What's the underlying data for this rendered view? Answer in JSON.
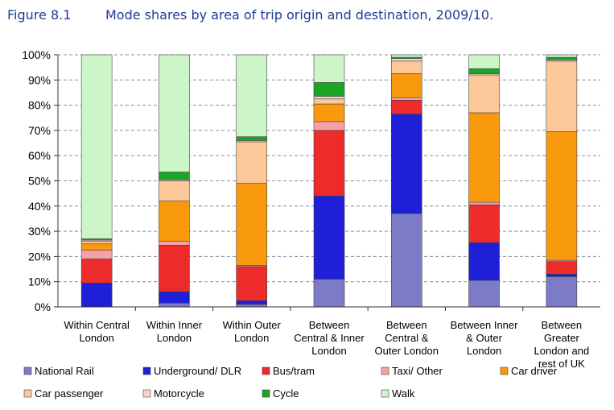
{
  "figure_label": "Figure 8.1",
  "chart_data": {
    "type": "bar",
    "stacked": true,
    "title": "Mode shares by area of trip origin and destination, 2009/10.",
    "xlabel": "",
    "ylabel": "",
    "ylim": [
      0,
      100
    ],
    "y_unit": "%",
    "y_ticks": [
      "0%",
      "10%",
      "20%",
      "30%",
      "40%",
      "50%",
      "60%",
      "70%",
      "80%",
      "90%",
      "100%"
    ],
    "grid": true,
    "legend_position": "bottom",
    "categories": [
      [
        "Within Central",
        "London"
      ],
      [
        "Within Inner",
        "London"
      ],
      [
        "Within Outer",
        "London"
      ],
      [
        "Between",
        "Central & Inner",
        "London"
      ],
      [
        "Between",
        "Central &",
        "Outer London"
      ],
      [
        "Between Inner",
        "& Outer",
        "London"
      ],
      [
        "Between",
        "Greater",
        "London and",
        "rest of UK"
      ]
    ],
    "series": [
      {
        "name": "National Rail",
        "color": "#7b7bc8",
        "values": [
          0,
          1.5,
          1,
          11,
          37,
          10.5,
          12
        ]
      },
      {
        "name": "Underground/ DLR",
        "color": "#1f1fd8",
        "values": [
          9.5,
          4.5,
          1.5,
          33,
          39.5,
          15,
          1
        ]
      },
      {
        "name": "Bus/tram",
        "color": "#ee2b2b",
        "values": [
          9.5,
          18.5,
          13.5,
          26,
          5.5,
          15,
          5
        ]
      },
      {
        "name": "Taxi/ Other",
        "color": "#f7a0a8",
        "values": [
          3.5,
          1.5,
          0.5,
          3.5,
          1,
          1,
          0.5
        ]
      },
      {
        "name": "Car driver",
        "color": "#f99a0e",
        "values": [
          2.5,
          16,
          32.5,
          7,
          9.5,
          35.5,
          51
        ]
      },
      {
        "name": "Car passenger",
        "color": "#fcc89a",
        "values": [
          1,
          8,
          16.5,
          2,
          5,
          15,
          28
        ]
      },
      {
        "name": "Motorcycle",
        "color": "#fbd3cc",
        "values": [
          0.5,
          0.5,
          0.5,
          1,
          1,
          0.5,
          0.5
        ]
      },
      {
        "name": "Cycle",
        "color": "#1aa526",
        "values": [
          0.5,
          3,
          1.5,
          5.5,
          0.5,
          2,
          1
        ]
      },
      {
        "name": "Walk",
        "color": "#ccf5c8",
        "values": [
          73,
          46.5,
          32.5,
          11,
          1,
          5.5,
          1
        ]
      }
    ]
  }
}
